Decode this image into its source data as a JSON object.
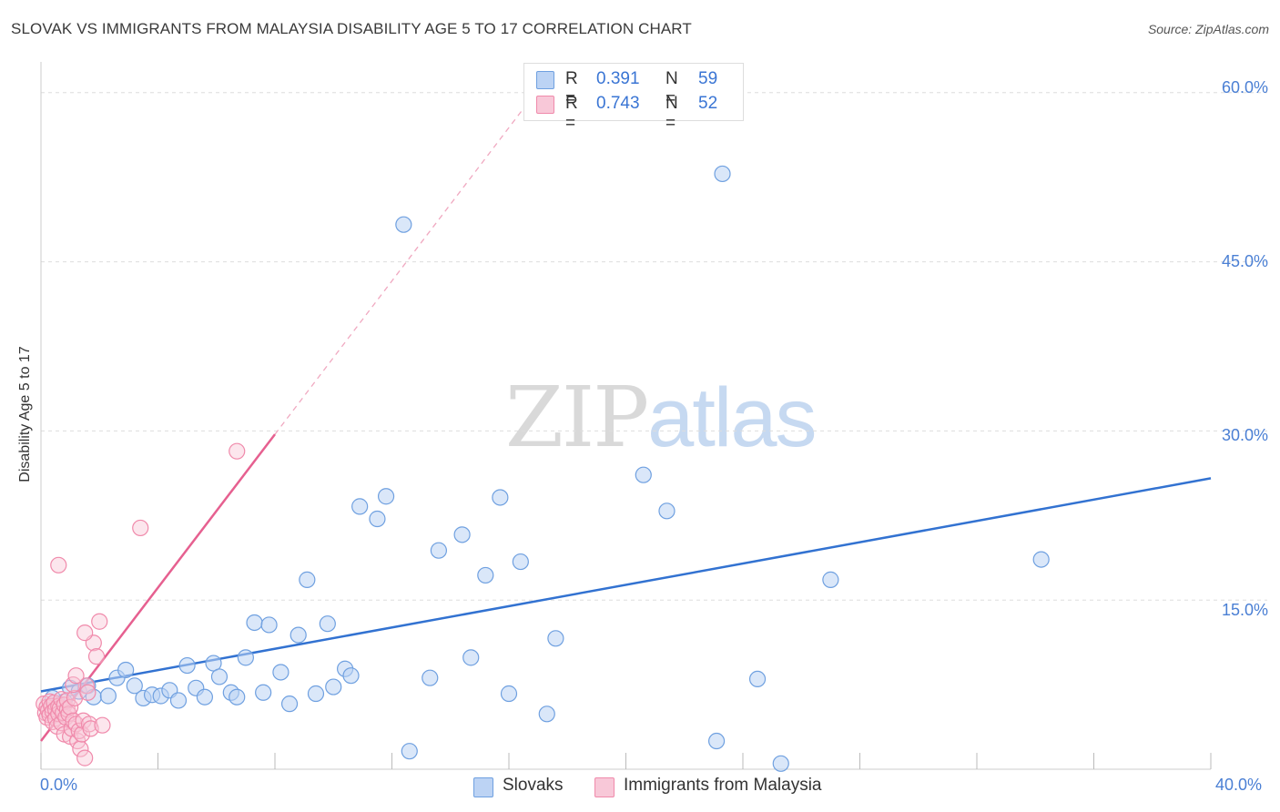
{
  "title": "SLOVAK VS IMMIGRANTS FROM MALAYSIA DISABILITY AGE 5 TO 17 CORRELATION CHART",
  "source": "Source: ZipAtlas.com",
  "watermark": {
    "zip": "ZIP",
    "atlas": "atlas"
  },
  "colors": {
    "blue": "#6fa0e0",
    "blue_fill": "#bcd3f4",
    "blue_line": "#3272d1",
    "pink": "#f08aab",
    "pink_fill": "#f8c8d8",
    "pink_line": "#e66090",
    "tick_text": "#4a7fd4"
  },
  "legend": {
    "items": [
      {
        "r_label": "R =",
        "r_value": "0.391",
        "n_label": "N =",
        "n_value": "59"
      },
      {
        "r_label": "R =",
        "r_value": "0.743",
        "n_label": "N =",
        "n_value": "52"
      }
    ]
  },
  "bottom_legend": {
    "series1": "Slovaks",
    "series2": "Immigrants from Malaysia"
  },
  "chart_data": {
    "type": "scatter",
    "title": "SLOVAK VS IMMIGRANTS FROM MALAYSIA DISABILITY AGE 5 TO 17 CORRELATION CHART",
    "xlabel": "",
    "ylabel": "Disability Age 5 to 17",
    "xlim": [
      0,
      40
    ],
    "ylim": [
      0,
      62
    ],
    "x_tick_labels": [
      "0.0%",
      "40.0%"
    ],
    "y_ticks": [
      15,
      30,
      45,
      60
    ],
    "y_tick_labels": [
      "15.0%",
      "30.0%",
      "45.0%",
      "60.0%"
    ],
    "grid": true,
    "series": [
      {
        "name": "Slovaks",
        "color": "#6fa0e0",
        "r": 0.391,
        "n": 59,
        "trend": {
          "x": [
            0,
            40
          ],
          "y": [
            6.9,
            25.8
          ]
        },
        "points": [
          [
            0.6,
            5.8
          ],
          [
            0.8,
            6.0
          ],
          [
            1.0,
            7.2
          ],
          [
            1.3,
            6.9
          ],
          [
            1.6,
            7.4
          ],
          [
            1.8,
            6.4
          ],
          [
            2.3,
            6.5
          ],
          [
            2.6,
            8.1
          ],
          [
            2.9,
            8.8
          ],
          [
            3.2,
            7.4
          ],
          [
            3.5,
            6.3
          ],
          [
            3.8,
            6.6
          ],
          [
            4.1,
            6.5
          ],
          [
            4.4,
            7.0
          ],
          [
            4.7,
            6.1
          ],
          [
            5.0,
            9.2
          ],
          [
            5.3,
            7.2
          ],
          [
            5.6,
            6.4
          ],
          [
            5.9,
            9.4
          ],
          [
            6.1,
            8.2
          ],
          [
            6.5,
            6.8
          ],
          [
            6.7,
            6.4
          ],
          [
            7.0,
            9.9
          ],
          [
            7.3,
            13.0
          ],
          [
            7.6,
            6.8
          ],
          [
            7.8,
            12.8
          ],
          [
            8.2,
            8.6
          ],
          [
            8.5,
            5.8
          ],
          [
            8.8,
            11.9
          ],
          [
            9.1,
            16.8
          ],
          [
            9.4,
            6.7
          ],
          [
            9.8,
            12.9
          ],
          [
            10.0,
            7.3
          ],
          [
            10.4,
            8.9
          ],
          [
            10.6,
            8.3
          ],
          [
            10.9,
            23.3
          ],
          [
            11.5,
            22.2
          ],
          [
            11.8,
            24.2
          ],
          [
            12.4,
            48.3
          ],
          [
            12.6,
            1.6
          ],
          [
            13.3,
            8.1
          ],
          [
            13.6,
            19.4
          ],
          [
            14.4,
            20.8
          ],
          [
            14.7,
            9.9
          ],
          [
            15.2,
            17.2
          ],
          [
            15.7,
            24.1
          ],
          [
            16.0,
            6.7
          ],
          [
            16.4,
            18.4
          ],
          [
            17.3,
            4.9
          ],
          [
            17.6,
            11.6
          ],
          [
            20.6,
            26.1
          ],
          [
            21.4,
            22.9
          ],
          [
            23.1,
            2.5
          ],
          [
            23.3,
            52.8
          ],
          [
            24.5,
            8.0
          ],
          [
            25.3,
            0.5
          ],
          [
            27.0,
            16.8
          ],
          [
            34.2,
            18.6
          ],
          [
            0.4,
            6.3
          ]
        ]
      },
      {
        "name": "Immigrants from Malaysia",
        "color": "#f08aab",
        "r": 0.743,
        "n": 52,
        "trend": {
          "x": [
            0,
            8.0
          ],
          "y": [
            2.5,
            29.7
          ]
        },
        "trend_dashed": {
          "x": [
            8.0,
            17.5
          ],
          "y": [
            29.7,
            62.0
          ]
        },
        "points": [
          [
            0.1,
            5.8
          ],
          [
            0.15,
            5.0
          ],
          [
            0.2,
            5.5
          ],
          [
            0.2,
            4.6
          ],
          [
            0.25,
            5.2
          ],
          [
            0.3,
            6.0
          ],
          [
            0.3,
            4.8
          ],
          [
            0.35,
            5.6
          ],
          [
            0.4,
            5.1
          ],
          [
            0.4,
            4.2
          ],
          [
            0.45,
            5.9
          ],
          [
            0.5,
            5.3
          ],
          [
            0.5,
            4.5
          ],
          [
            0.55,
            3.8
          ],
          [
            0.6,
            5.6
          ],
          [
            0.6,
            4.9
          ],
          [
            0.65,
            5.4
          ],
          [
            0.7,
            6.2
          ],
          [
            0.7,
            4.1
          ],
          [
            0.75,
            5.0
          ],
          [
            0.8,
            3.1
          ],
          [
            0.8,
            5.7
          ],
          [
            0.85,
            4.6
          ],
          [
            0.9,
            5.3
          ],
          [
            0.9,
            6.1
          ],
          [
            0.95,
            4.9
          ],
          [
            1.0,
            2.9
          ],
          [
            1.0,
            5.5
          ],
          [
            1.05,
            3.6
          ],
          [
            1.1,
            4.3
          ],
          [
            1.15,
            6.3
          ],
          [
            1.2,
            4.0
          ],
          [
            1.25,
            2.5
          ],
          [
            1.3,
            3.4
          ],
          [
            1.35,
            1.8
          ],
          [
            1.4,
            3.1
          ],
          [
            1.45,
            4.3
          ],
          [
            1.5,
            1.0
          ],
          [
            1.55,
            7.4
          ],
          [
            1.6,
            6.8
          ],
          [
            1.65,
            4.0
          ],
          [
            1.7,
            3.6
          ],
          [
            1.8,
            11.2
          ],
          [
            1.9,
            10.0
          ],
          [
            2.0,
            13.1
          ],
          [
            2.1,
            3.9
          ],
          [
            1.1,
            7.5
          ],
          [
            1.2,
            8.3
          ],
          [
            1.5,
            12.1
          ],
          [
            0.6,
            18.1
          ],
          [
            3.4,
            21.4
          ],
          [
            6.7,
            28.2
          ]
        ]
      }
    ]
  }
}
